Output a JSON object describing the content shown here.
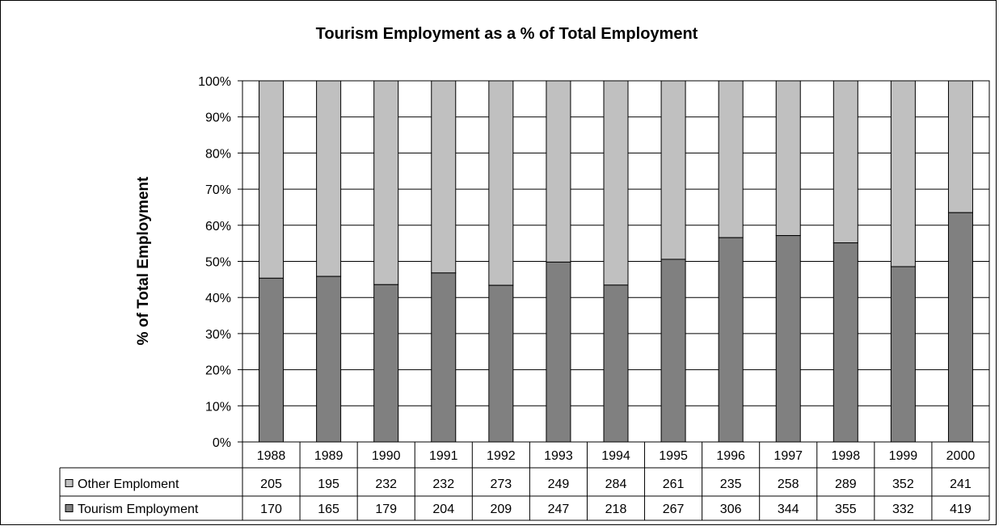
{
  "chart_data": {
    "type": "bar",
    "stacked": "percent",
    "title": "Tourism Employment as a % of Total Employment",
    "xlabel": "",
    "ylabel": "% of Total Employment",
    "ylim": [
      0,
      100
    ],
    "y_ticks": [
      "0%",
      "10%",
      "20%",
      "30%",
      "40%",
      "50%",
      "60%",
      "70%",
      "80%",
      "90%",
      "100%"
    ],
    "grid": true,
    "legend": "data-table",
    "categories": [
      "1988",
      "1989",
      "1990",
      "1991",
      "1992",
      "1993",
      "1994",
      "1995",
      "1996",
      "1997",
      "1998",
      "1999",
      "2000"
    ],
    "series": [
      {
        "name": "Other Emploment",
        "color": "#c0c0c0",
        "values": [
          205,
          195,
          232,
          232,
          273,
          249,
          284,
          261,
          235,
          258,
          289,
          352,
          241
        ]
      },
      {
        "name": "Tourism Employment",
        "color": "#808080",
        "values": [
          170,
          165,
          179,
          204,
          209,
          247,
          218,
          267,
          306,
          344,
          355,
          332,
          419
        ]
      }
    ]
  }
}
